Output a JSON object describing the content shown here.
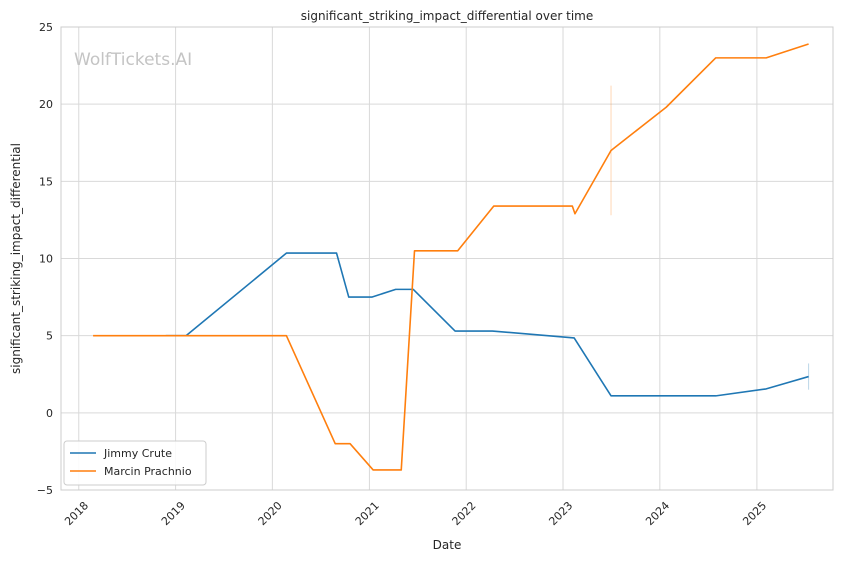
{
  "chart_data": {
    "type": "line",
    "title": "significant_striking_impact_differential over time",
    "xlabel": "Date",
    "ylabel": "significant_striking_impact_differential",
    "watermark": "WolfTickets.AI",
    "xlim": [
      "2017-10-26",
      "2025-10-15"
    ],
    "ylim": [
      -5,
      25
    ],
    "x_ticks": [
      {
        "date": "2018-01-01",
        "label": "2018"
      },
      {
        "date": "2019-01-01",
        "label": "2019"
      },
      {
        "date": "2020-01-01",
        "label": "2020"
      },
      {
        "date": "2021-01-01",
        "label": "2021"
      },
      {
        "date": "2022-01-01",
        "label": "2022"
      },
      {
        "date": "2023-01-01",
        "label": "2023"
      },
      {
        "date": "2024-01-01",
        "label": "2024"
      },
      {
        "date": "2025-01-01",
        "label": "2025"
      }
    ],
    "y_ticks": [
      {
        "value": -5,
        "label": "−5"
      },
      {
        "value": 0,
        "label": "0"
      },
      {
        "value": 5,
        "label": "5"
      },
      {
        "value": 10,
        "label": "10"
      },
      {
        "value": 15,
        "label": "15"
      },
      {
        "value": 20,
        "label": "20"
      },
      {
        "value": 25,
        "label": "25"
      }
    ],
    "grid": true,
    "legend_position": "lower-left",
    "series": [
      {
        "name": "Jimmy Crute",
        "color": "#1f77b4",
        "points": [
          {
            "x": "2018-11-25",
            "y": 5.0
          },
          {
            "x": "2019-02-10",
            "y": 5.0
          },
          {
            "x": "2020-02-23",
            "y": 10.35
          },
          {
            "x": "2020-08-30",
            "y": 10.35
          },
          {
            "x": "2020-10-15",
            "y": 7.5
          },
          {
            "x": "2021-01-10",
            "y": 7.5
          },
          {
            "x": "2021-04-10",
            "y": 8.0
          },
          {
            "x": "2021-06-15",
            "y": 8.0
          },
          {
            "x": "2021-11-20",
            "y": 5.3
          },
          {
            "x": "2022-04-10",
            "y": 5.3
          },
          {
            "x": "2023-02-12",
            "y": 4.85
          },
          {
            "x": "2023-07-01",
            "y": 1.1
          },
          {
            "x": "2024-07-30",
            "y": 1.1
          },
          {
            "x": "2025-02-05",
            "y": 1.55
          },
          {
            "x": "2025-07-15",
            "y": 2.35
          }
        ]
      },
      {
        "name": "Marcin Prachnio",
        "color": "#ff7f0e",
        "points": [
          {
            "x": "2018-02-24",
            "y": 5.0
          },
          {
            "x": "2020-02-23",
            "y": 5.0
          },
          {
            "x": "2020-08-25",
            "y": -2.0
          },
          {
            "x": "2020-10-20",
            "y": -2.0
          },
          {
            "x": "2021-01-15",
            "y": -3.7
          },
          {
            "x": "2021-05-01",
            "y": -3.7
          },
          {
            "x": "2021-06-20",
            "y": 10.5
          },
          {
            "x": "2021-11-30",
            "y": 10.5
          },
          {
            "x": "2022-04-15",
            "y": 13.4
          },
          {
            "x": "2023-02-05",
            "y": 13.4
          },
          {
            "x": "2023-02-15",
            "y": 12.9
          },
          {
            "x": "2023-07-01",
            "y": 17.0
          },
          {
            "x": "2024-01-25",
            "y": 19.8
          },
          {
            "x": "2024-07-30",
            "y": 23.0
          },
          {
            "x": "2025-02-05",
            "y": 23.0
          },
          {
            "x": "2025-07-15",
            "y": 23.9
          }
        ]
      }
    ],
    "error_bars": [
      {
        "series": "Marcin Prachnio",
        "x": "2023-07-01",
        "low": 12.8,
        "high": 21.2
      },
      {
        "series": "Jimmy Crute",
        "x": "2025-07-15",
        "low": 1.5,
        "high": 3.2
      }
    ]
  }
}
